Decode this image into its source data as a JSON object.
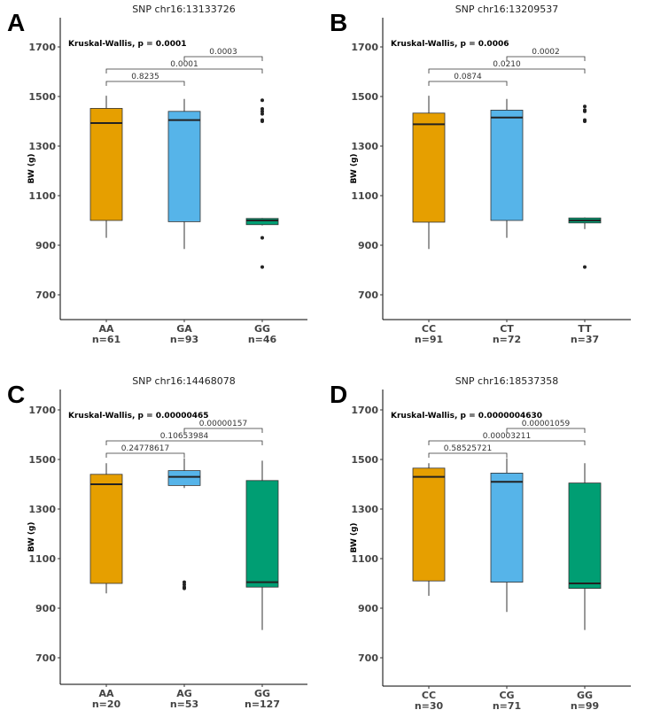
{
  "chart_data": [
    {
      "type": "box",
      "panel_letter": "A",
      "title": "SNP chr16:13133726",
      "ylabel": "BW (g)",
      "ylim": [
        600,
        1820
      ],
      "yticks": [
        700,
        900,
        1100,
        1300,
        1500,
        1700
      ],
      "test_label": "Kruskal-Wallis, p = 0.0001",
      "categories": [
        {
          "label": "AA",
          "n": "n=61",
          "color": "#E69F00",
          "whisker_low": 930,
          "q1": 1000,
          "median": 1393,
          "q3": 1452,
          "whisker_high": 1503,
          "outliers": []
        },
        {
          "label": "GA",
          "n": "n=93",
          "color": "#56B4E9",
          "whisker_low": 885,
          "q1": 995,
          "median": 1405,
          "q3": 1440,
          "whisker_high": 1490,
          "outliers": []
        },
        {
          "label": "GG",
          "n": "n=46",
          "color": "#009E73",
          "whisker_low": 980,
          "q1": 983,
          "median": 1000,
          "q3": 1008,
          "whisker_high": 1010,
          "outliers": [
            1485,
            1450,
            1440,
            1430,
            1405,
            1400,
            930,
            812
          ]
        }
      ],
      "comparisons": [
        {
          "from": 0,
          "to": 1,
          "p": "0.8235"
        },
        {
          "from": 0,
          "to": 2,
          "p": "0.0001"
        },
        {
          "from": 1,
          "to": 2,
          "p": "0.0003"
        }
      ]
    },
    {
      "type": "box",
      "panel_letter": "B",
      "title": "SNP chr16:13209537",
      "ylabel": "BW (g)",
      "ylim": [
        600,
        1820
      ],
      "yticks": [
        700,
        900,
        1100,
        1300,
        1500,
        1700
      ],
      "test_label": "Kruskal-Wallis, p = 0.0006",
      "categories": [
        {
          "label": "CC",
          "n": "n=91",
          "color": "#E69F00",
          "whisker_low": 885,
          "q1": 993,
          "median": 1388,
          "q3": 1433,
          "whisker_high": 1503,
          "outliers": []
        },
        {
          "label": "CT",
          "n": "n=72",
          "color": "#56B4E9",
          "whisker_low": 930,
          "q1": 1000,
          "median": 1415,
          "q3": 1445,
          "whisker_high": 1490,
          "outliers": []
        },
        {
          "label": "TT",
          "n": "n=37",
          "color": "#009E73",
          "whisker_low": 965,
          "q1": 990,
          "median": 1000,
          "q3": 1010,
          "whisker_high": 1012,
          "outliers": [
            1460,
            1445,
            1440,
            1405,
            1400,
            812
          ]
        }
      ],
      "comparisons": [
        {
          "from": 0,
          "to": 1,
          "p": "0.0874"
        },
        {
          "from": 0,
          "to": 2,
          "p": "0.0210"
        },
        {
          "from": 1,
          "to": 2,
          "p": "0.0002"
        }
      ]
    },
    {
      "type": "box",
      "panel_letter": "C",
      "title": "SNP chr16:14468078",
      "ylabel": "BW (g)",
      "ylim": [
        600,
        1790
      ],
      "yticks": [
        700,
        900,
        1100,
        1300,
        1500,
        1700
      ],
      "test_label": "Kruskal-Wallis, p = 0.00000465",
      "categories": [
        {
          "label": "AA",
          "n": "n=20",
          "color": "#E69F00",
          "whisker_low": 960,
          "q1": 1000,
          "median": 1400,
          "q3": 1440,
          "whisker_high": 1485,
          "outliers": []
        },
        {
          "label": "AG",
          "n": "n=53",
          "color": "#56B4E9",
          "whisker_low": 1385,
          "q1": 1395,
          "median": 1430,
          "q3": 1455,
          "whisker_high": 1505,
          "outliers": [
            1005,
            995,
            985,
            980
          ]
        },
        {
          "label": "GG",
          "n": "n=127",
          "color": "#009E73",
          "whisker_low": 812,
          "q1": 985,
          "median": 1005,
          "q3": 1415,
          "whisker_high": 1495,
          "outliers": []
        }
      ],
      "comparisons": [
        {
          "from": 0,
          "to": 1,
          "p": "0.24778617"
        },
        {
          "from": 0,
          "to": 2,
          "p": "0.10653984"
        },
        {
          "from": 1,
          "to": 2,
          "p": "0.00000157"
        }
      ]
    },
    {
      "type": "box",
      "panel_letter": "D",
      "title": "SNP chr16:18537358",
      "ylabel": "BW (g)",
      "ylim": [
        600,
        1790
      ],
      "yticks": [
        700,
        900,
        1100,
        1300,
        1500,
        1700
      ],
      "test_label": "Kruskal-Wallis, p = 0.0000004630",
      "categories": [
        {
          "label": "CC",
          "n": "n=30",
          "color": "#E69F00",
          "whisker_low": 950,
          "q1": 1010,
          "median": 1430,
          "q3": 1465,
          "whisker_high": 1485,
          "outliers": []
        },
        {
          "label": "CG",
          "n": "n=71",
          "color": "#56B4E9",
          "whisker_low": 885,
          "q1": 1005,
          "median": 1410,
          "q3": 1445,
          "whisker_high": 1505,
          "outliers": []
        },
        {
          "label": "GG",
          "n": "n=99",
          "color": "#009E73",
          "whisker_low": 812,
          "q1": 980,
          "median": 1000,
          "q3": 1405,
          "whisker_high": 1485,
          "outliers": []
        }
      ],
      "comparisons": [
        {
          "from": 0,
          "to": 1,
          "p": "0.58525721"
        },
        {
          "from": 0,
          "to": 2,
          "p": "0.00003211"
        },
        {
          "from": 1,
          "to": 2,
          "p": "0.00001059"
        }
      ]
    }
  ]
}
